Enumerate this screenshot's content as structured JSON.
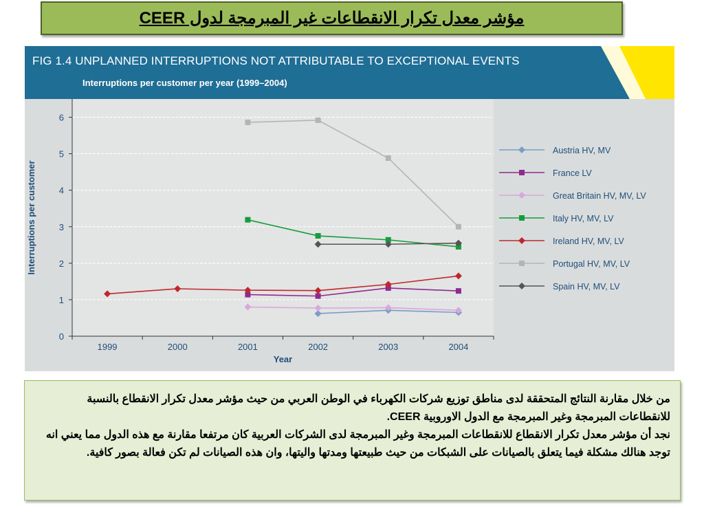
{
  "slide_title": "مؤشر معدل تكرار الانقطاعات غير المبرمجة لدول CEER",
  "figure": {
    "title": "FIG 1.4  UNPLANNED INTERRUPTIONS NOT ATTRIBUTABLE TO EXCEPTIONAL EVENTS",
    "subtitle": "Interruptions per customer per year (1999–2004)"
  },
  "chart_data": {
    "type": "line",
    "xlabel": "Year",
    "ylabel": "Interruptions per customer",
    "categories": [
      "1999",
      "2000",
      "2001",
      "2002",
      "2003",
      "2004"
    ],
    "ylim": [
      0,
      6.5
    ],
    "yticks": [
      0,
      1,
      2,
      3,
      4,
      5,
      6
    ],
    "grid": "horizontal-dashed",
    "legend_position": "right",
    "series": [
      {
        "name": "Austria HV, MV",
        "color": "#7a9cc6",
        "marker": "diamond",
        "values": [
          null,
          null,
          null,
          0.62,
          0.71,
          0.65
        ]
      },
      {
        "name": "France LV",
        "color": "#8e2a8e",
        "marker": "square",
        "values": [
          null,
          null,
          1.14,
          1.1,
          1.32,
          1.24
        ]
      },
      {
        "name": "Great Britain HV, MV, LV",
        "color": "#d8a8dc",
        "marker": "diamond",
        "values": [
          null,
          null,
          0.8,
          0.77,
          0.78,
          0.71
        ]
      },
      {
        "name": "Italy HV, MV, LV",
        "color": "#169c3c",
        "marker": "square",
        "values": [
          null,
          null,
          3.19,
          2.75,
          2.64,
          2.45
        ]
      },
      {
        "name": "Ireland HV, MV, LV",
        "color": "#c0272d",
        "marker": "diamond",
        "values": [
          1.16,
          1.3,
          1.26,
          1.25,
          1.42,
          1.65
        ]
      },
      {
        "name": "Portugal HV, MV, LV",
        "color": "#b4b4b4",
        "marker": "square",
        "values": [
          null,
          null,
          5.86,
          5.92,
          4.88,
          3.0
        ]
      },
      {
        "name": "Spain HV, MV, LV",
        "color": "#555555",
        "marker": "diamond",
        "values": [
          null,
          null,
          null,
          2.52,
          2.52,
          2.55
        ]
      }
    ]
  },
  "note": {
    "p1": "من خلال مقارنة النتائج المتحققة لدى مناطق توزيع شركات الكهرباء في الوطن العربي من حيث مؤشر معدل تكرار الانقطاع بالنسبة للانقطاعات المبرمجة وغير المبرمجة مع الدول الاوروبية CEER.",
    "p2": " نجد أن مؤشر معدل تكرار الانقطاع للانقطاعات المبرمجة وغير المبرمجة لدى الشركات العربية كان مرتفعا مقارنة مع هذه الدول مما يعني انه توجد هنالك مشكلة فيما يتعلق بالصيانات على الشبكات  من حيث طبيعتها ومدتها واليتها، وان هذه الصيانات لم تكن فعالة بصور كافية."
  }
}
